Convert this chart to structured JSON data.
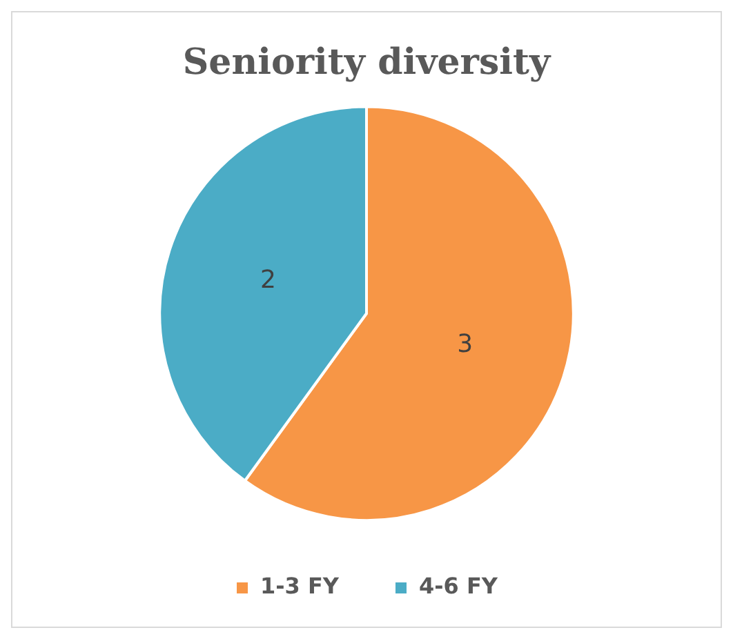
{
  "chart_data": {
    "type": "pie",
    "title": "Seniority diversity",
    "categories": [
      "1-3 FY",
      "4-6 FY"
    ],
    "values": [
      3,
      2
    ],
    "colors": [
      "#f79646",
      "#4bacc6"
    ],
    "data_labels": true,
    "legend": "bottom"
  }
}
